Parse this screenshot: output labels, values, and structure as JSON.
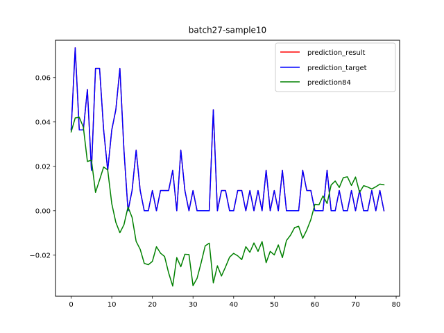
{
  "chart_data": {
    "type": "line",
    "title": "batch27-sample10",
    "xlabel": "",
    "ylabel": "",
    "xlim": [
      -3.85,
      80.85
    ],
    "ylim": [
      -0.0385,
      0.0768
    ],
    "xticks": [
      0,
      10,
      20,
      30,
      40,
      50,
      60,
      70,
      80
    ],
    "yticks": [
      -0.02,
      0.0,
      0.02,
      0.04,
      0.06
    ],
    "ytick_labels": [
      "−0.02",
      "0.00",
      "0.02",
      "0.04",
      "0.06"
    ],
    "grid": false,
    "legend_position": "upper right",
    "series": [
      {
        "name": "prediction_result",
        "color": "#ff0000",
        "values": [
          0.0364,
          0.0734,
          0.0364,
          0.0364,
          0.0546,
          0.0182,
          0.0641,
          0.0641,
          0.0364,
          0.0182,
          0.0364,
          0.0455,
          0.0641,
          0.0273,
          0.0,
          0.0091,
          0.0273,
          0.0091,
          0.0,
          0.0,
          0.0091,
          0.0,
          0.0091,
          0.0091,
          0.0091,
          0.0182,
          0.0,
          0.0273,
          0.0091,
          0.0,
          0.0091,
          0.0,
          0.0,
          0.0,
          0.0,
          0.0455,
          0.0,
          0.0091,
          0.0091,
          0.0,
          0.0,
          0.0091,
          0.0091,
          0.0,
          0.0091,
          0.0,
          0.0091,
          0.0,
          0.0182,
          0.0,
          0.0091,
          0.0,
          0.0182,
          0.0,
          0.0,
          0.0,
          0.0,
          0.0182,
          0.0091,
          0.0091,
          0.0,
          0.0,
          0.0,
          0.0182,
          0.0,
          0.0,
          0.0091,
          0.0,
          0.0,
          0.0091,
          0.0,
          0.0091,
          0.0,
          0.0,
          0.0091,
          0.0,
          0.0091,
          0.0
        ]
      },
      {
        "name": "prediction_target",
        "color": "#0000ff",
        "values": [
          0.0364,
          0.0734,
          0.0364,
          0.0364,
          0.0546,
          0.0182,
          0.0641,
          0.0641,
          0.0364,
          0.0182,
          0.0364,
          0.0455,
          0.0641,
          0.0273,
          0.0,
          0.0091,
          0.0273,
          0.0091,
          0.0,
          0.0,
          0.0091,
          0.0,
          0.0091,
          0.0091,
          0.0091,
          0.0182,
          0.0,
          0.0273,
          0.0091,
          0.0,
          0.0091,
          0.0,
          0.0,
          0.0,
          0.0,
          0.0455,
          0.0,
          0.0091,
          0.0091,
          0.0,
          0.0,
          0.0091,
          0.0091,
          0.0,
          0.0091,
          0.0,
          0.0091,
          0.0,
          0.0182,
          0.0,
          0.0091,
          0.0,
          0.0182,
          0.0,
          0.0,
          0.0,
          0.0,
          0.0182,
          0.0091,
          0.0091,
          0.0,
          0.0,
          0.0,
          0.0182,
          0.0,
          0.0,
          0.0091,
          0.0,
          0.0,
          0.0091,
          0.0,
          0.0091,
          0.0,
          0.0,
          0.0091,
          0.0,
          0.0091,
          0.0
        ]
      },
      {
        "name": "prediction84",
        "color": "#008000",
        "values": [
          0.0355,
          0.0418,
          0.0421,
          0.0377,
          0.0222,
          0.0228,
          0.0083,
          0.0139,
          0.0197,
          0.0184,
          0.0032,
          -0.0052,
          -0.0099,
          -0.0063,
          0.0017,
          -0.003,
          -0.0138,
          -0.0174,
          -0.0237,
          -0.0243,
          -0.0228,
          -0.0162,
          -0.0191,
          -0.0206,
          -0.028,
          -0.0339,
          -0.0211,
          -0.0252,
          -0.0196,
          -0.0197,
          -0.0337,
          -0.0304,
          -0.0234,
          -0.0158,
          -0.0146,
          -0.0325,
          -0.0248,
          -0.0294,
          -0.0253,
          -0.0209,
          -0.0192,
          -0.0203,
          -0.022,
          -0.0162,
          -0.0187,
          -0.0145,
          -0.0183,
          -0.0139,
          -0.0234,
          -0.0183,
          -0.0199,
          -0.0154,
          -0.0211,
          -0.0134,
          -0.011,
          -0.0076,
          -0.007,
          -0.0124,
          -0.0087,
          -0.004,
          0.0029,
          0.0027,
          0.0067,
          0.0033,
          0.0116,
          0.0134,
          0.0105,
          0.0149,
          0.0153,
          0.0114,
          0.0152,
          0.0083,
          0.0113,
          0.0107,
          0.0098,
          0.0108,
          0.012,
          0.0117
        ]
      }
    ]
  }
}
